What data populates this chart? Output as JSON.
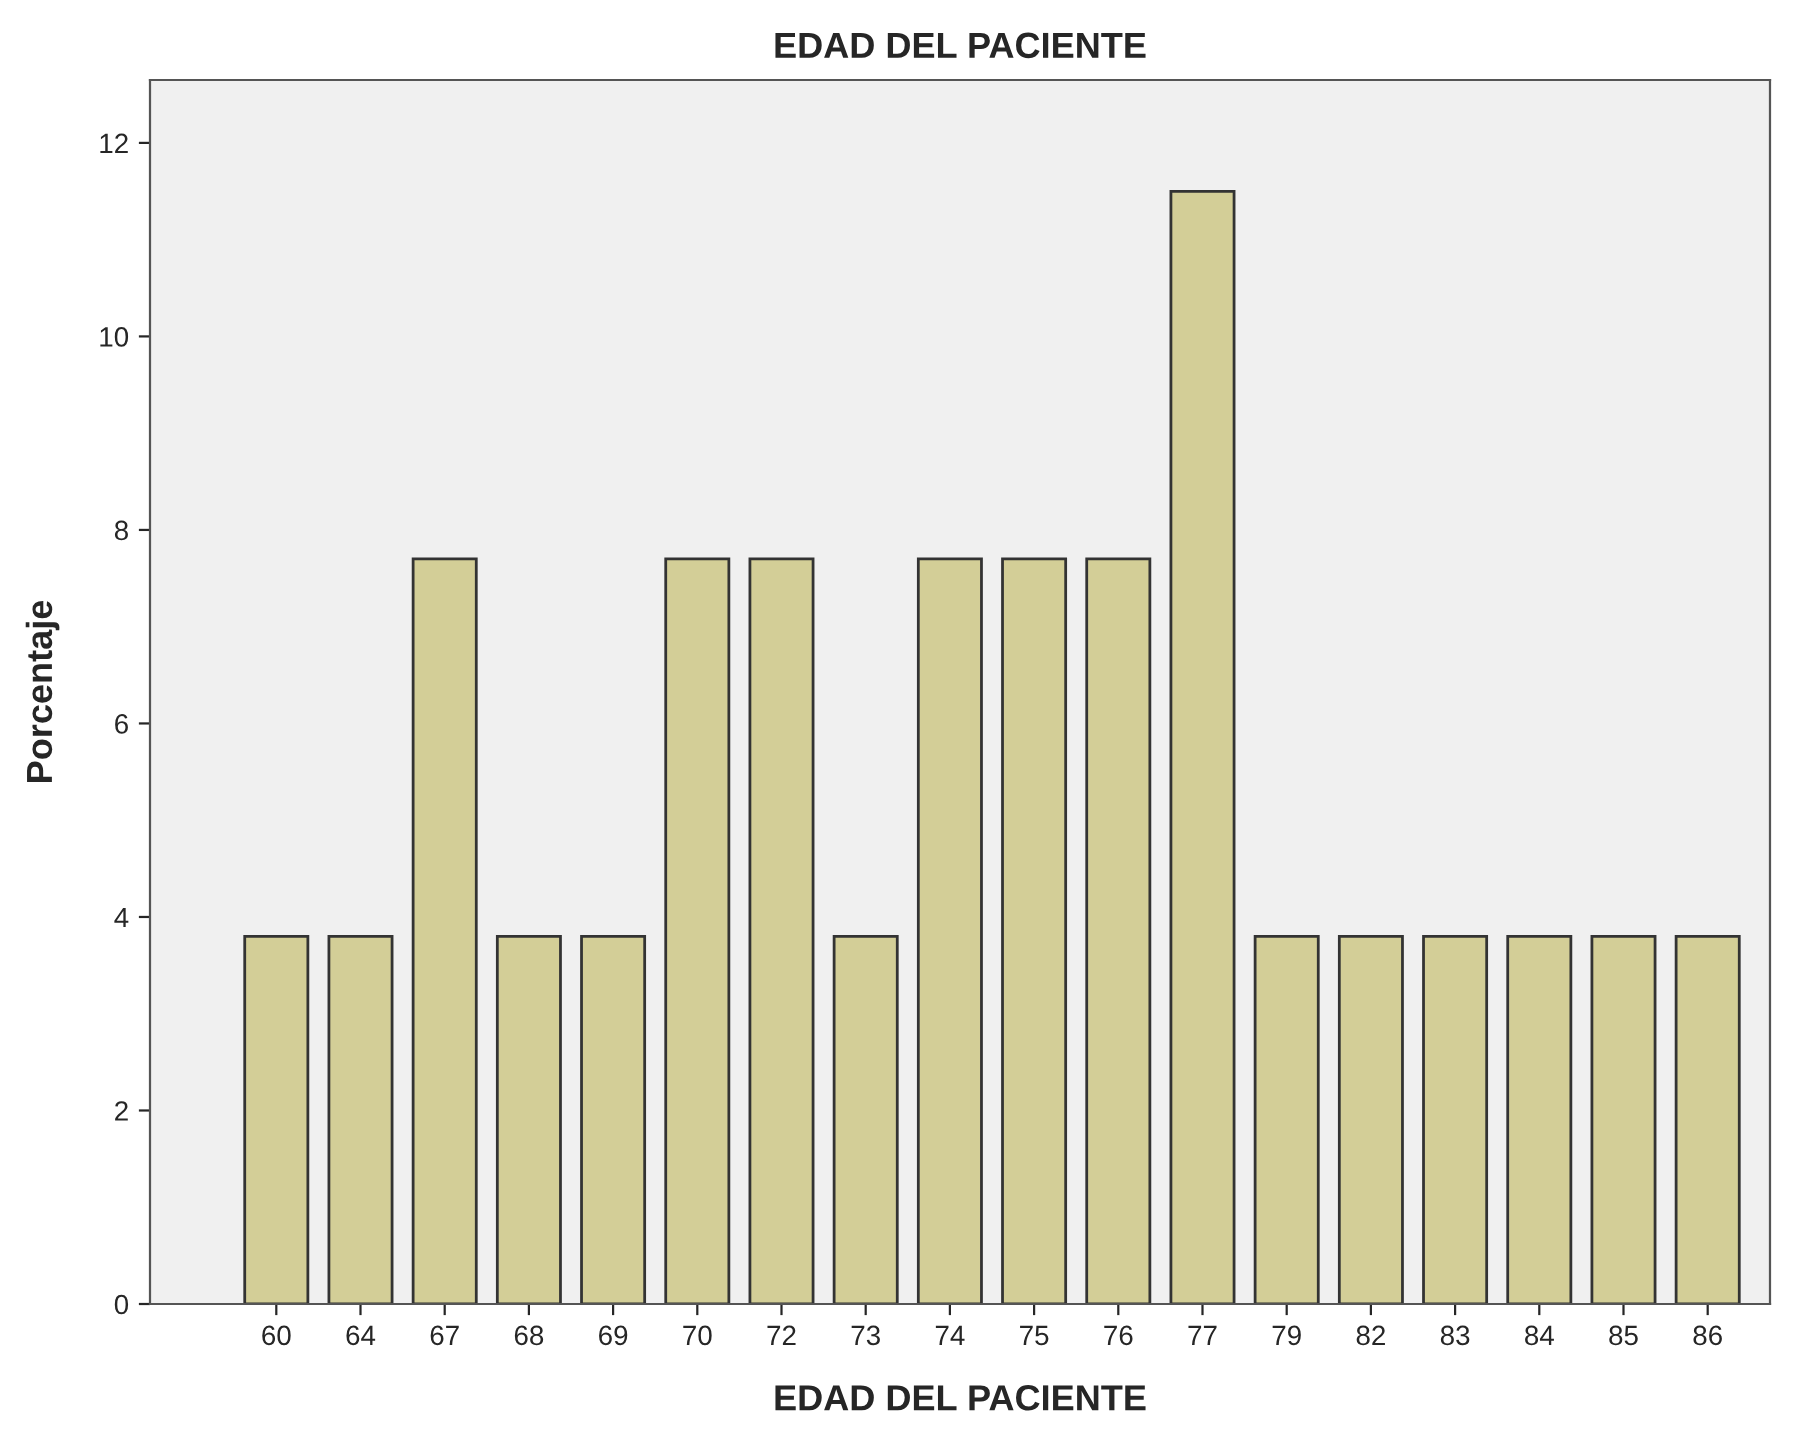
{
  "chart_data": {
    "type": "bar",
    "title": "EDAD DEL PACIENTE",
    "xlabel": "EDAD DEL PACIENTE",
    "ylabel": "Porcentaje",
    "categories": [
      "60",
      "64",
      "67",
      "68",
      "69",
      "70",
      "72",
      "73",
      "74",
      "75",
      "76",
      "77",
      "79",
      "82",
      "83",
      "84",
      "85",
      "86"
    ],
    "values": [
      3.8,
      3.8,
      7.7,
      3.8,
      3.8,
      7.7,
      7.7,
      3.8,
      7.7,
      7.7,
      7.7,
      11.5,
      3.8,
      3.8,
      3.8,
      3.8,
      3.8,
      3.8
    ],
    "color": "#d3ce97",
    "ylim": [
      0,
      12.65
    ],
    "yticks": [
      0,
      2,
      4,
      6,
      8,
      10,
      12
    ],
    "grid": false
  }
}
